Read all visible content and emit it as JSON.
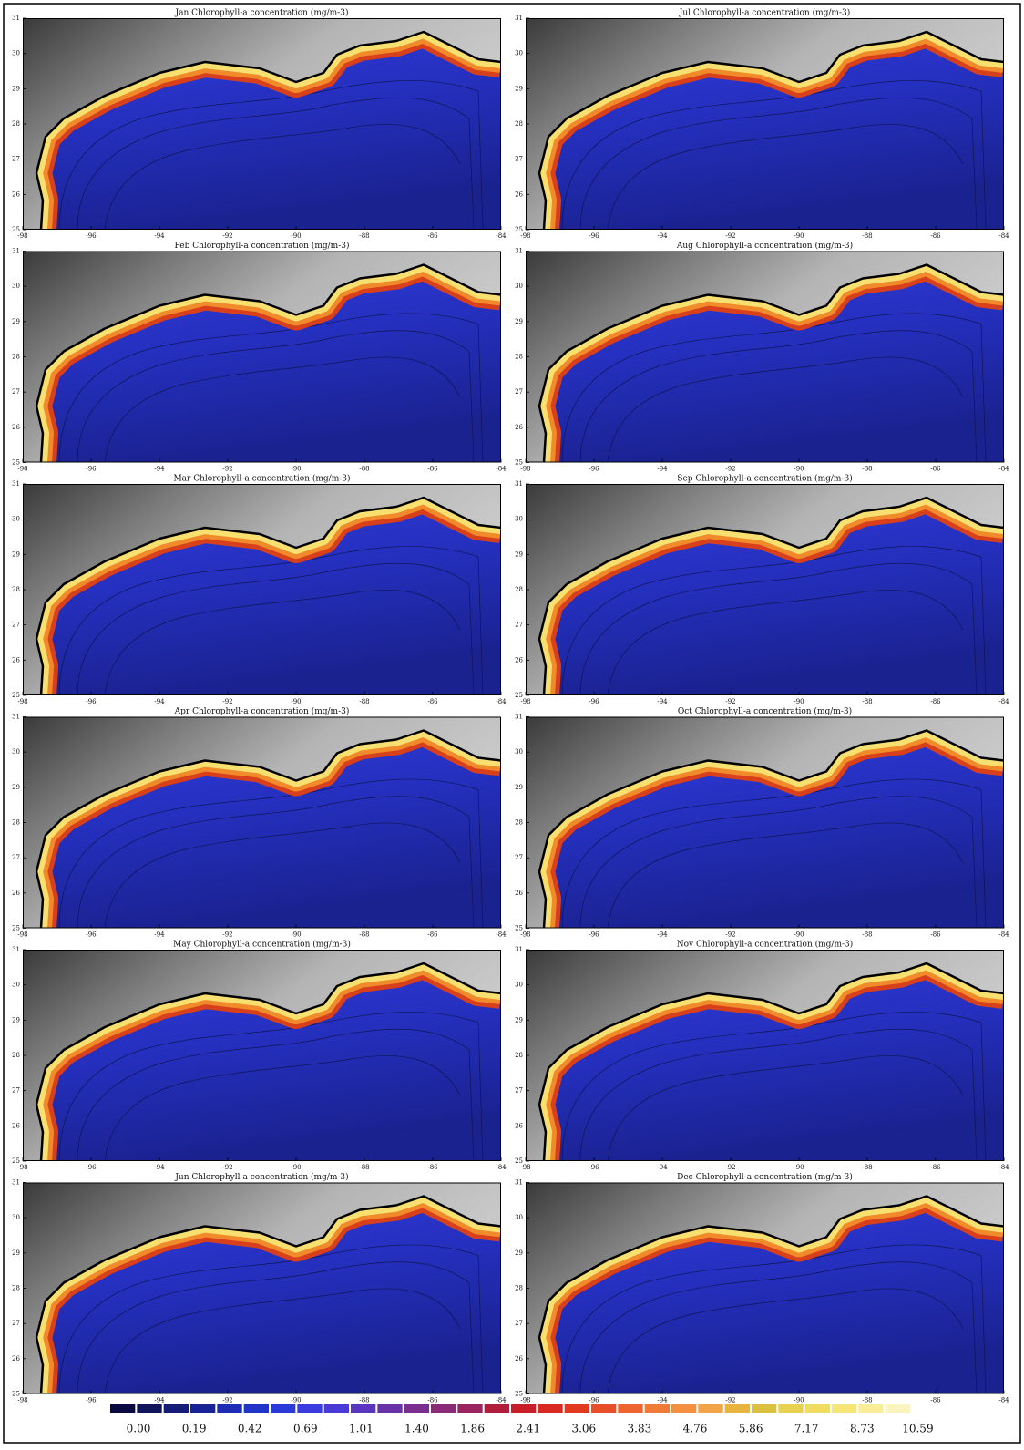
{
  "panels": [
    {
      "title": "Jan Chlorophyll-a concentration (mg/m-3)"
    },
    {
      "title": "Feb Chlorophyll-a concentration (mg/m-3)"
    },
    {
      "title": "Mar Chlorophyll-a concentration (mg/m-3)"
    },
    {
      "title": "Apr Chlorophyll-a concentration (mg/m-3)"
    },
    {
      "title": "May Chlorophyll-a concentration (mg/m-3)"
    },
    {
      "title": "Jun Chlorophyll-a concentration (mg/m-3)"
    },
    {
      "title": "Jul Chlorophyll-a concentration (mg/m-3)"
    },
    {
      "title": "Aug Chlorophyll-a concentration (mg/m-3)"
    },
    {
      "title": "Sep Chlorophyll-a concentration (mg/m-3)"
    },
    {
      "title": "Oct Chlorophyll-a concentration (mg/m-3)"
    },
    {
      "title": "Nov Chlorophyll-a concentration (mg/m-3)"
    },
    {
      "title": "Dec Chlorophyll-a concentration (mg/m-3)"
    }
  ],
  "lon_ticks": [
    -98,
    -96,
    -94,
    -92,
    -90,
    -88,
    -86,
    -84
  ],
  "lat_ticks": [
    25,
    26,
    27,
    28,
    29,
    30,
    31
  ],
  "colorbar": {
    "labels": [
      "0.00",
      "0.19",
      "0.42",
      "0.69",
      "1.01",
      "1.40",
      "1.86",
      "2.41",
      "3.06",
      "3.83",
      "4.76",
      "5.86",
      "7.17",
      "8.73",
      "10.59"
    ],
    "colors": [
      "#0a0a40",
      "#10145a",
      "#141c78",
      "#182496",
      "#1c2cb4",
      "#2034c8",
      "#2a3ad8",
      "#3a3ce0",
      "#4a3ad8",
      "#5a36c0",
      "#6a32a8",
      "#7a2e90",
      "#8a2a78",
      "#9a2460",
      "#b01e3c",
      "#c81e28",
      "#d82a20",
      "#e23a20",
      "#e84e28",
      "#ee6430",
      "#f07a38",
      "#f29040",
      "#f2a448",
      "#e8b440",
      "#dcc040",
      "#e8d050",
      "#f0dc60",
      "#f6e678",
      "#faee98",
      "#fcf4c0"
    ]
  }
}
